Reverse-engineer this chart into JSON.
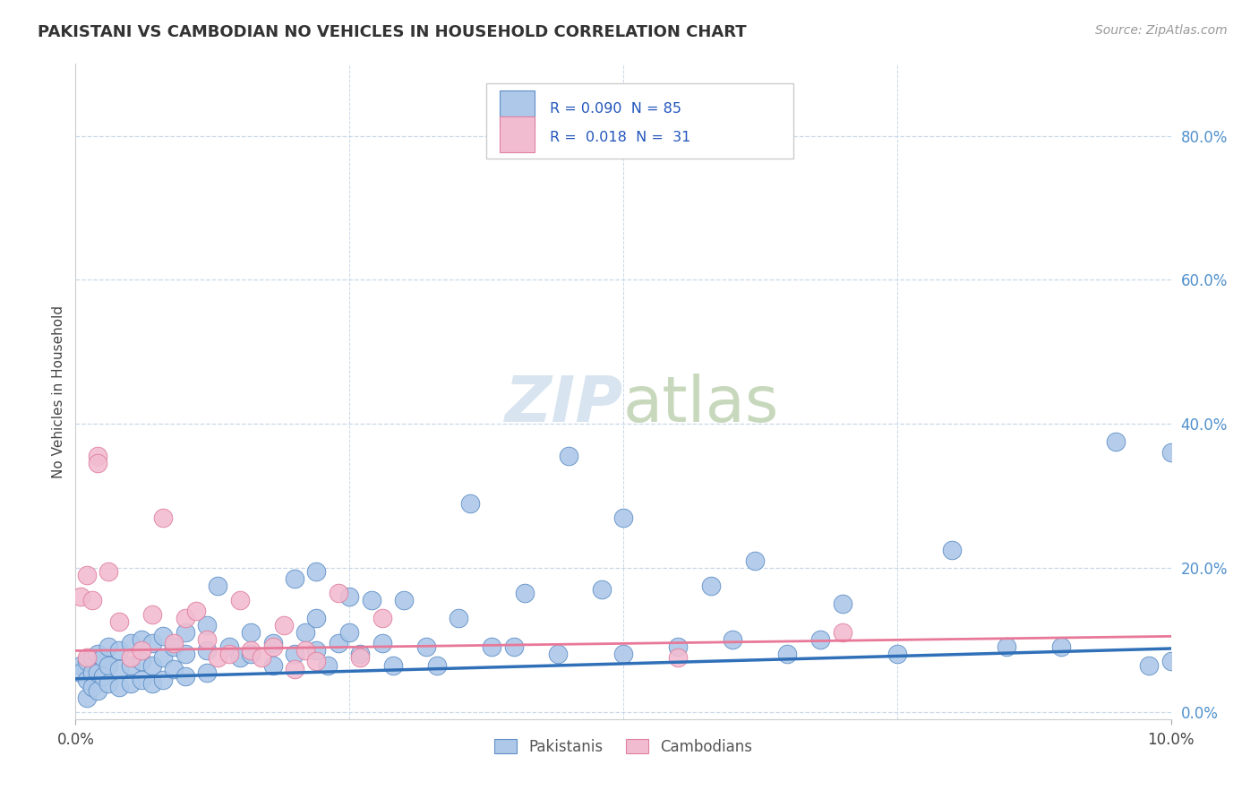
{
  "title": "PAKISTANI VS CAMBODIAN NO VEHICLES IN HOUSEHOLD CORRELATION CHART",
  "source": "Source: ZipAtlas.com",
  "ylabel": "No Vehicles in Household",
  "pakistani_color": "#adc8e8",
  "cambodian_color": "#f2bcd0",
  "pakistani_edge_color": "#6090c8",
  "cambodian_edge_color": "#e080a0",
  "pakistani_line_color": "#3070b8",
  "cambodian_line_color": "#e87898",
  "watermark_color": "#d8e4f0",
  "background_color": "#ffffff",
  "grid_color": "#c8d8e8",
  "right_tick_color": "#5090cc",
  "ytick_positions": [
    0.0,
    0.2,
    0.4,
    0.6,
    0.8
  ],
  "yticklabels": [
    "0.0%",
    "20.0%",
    "40.0%",
    "60.0%",
    "80.0%"
  ],
  "xlim": [
    0.0,
    0.1
  ],
  "ylim": [
    -0.01,
    0.9
  ],
  "pakistani_data": [
    [
      0.0005,
      0.065
    ],
    [
      0.0005,
      0.055
    ],
    [
      0.001,
      0.07
    ],
    [
      0.001,
      0.045
    ],
    [
      0.001,
      0.02
    ],
    [
      0.0015,
      0.075
    ],
    [
      0.0015,
      0.055
    ],
    [
      0.0015,
      0.035
    ],
    [
      0.002,
      0.08
    ],
    [
      0.002,
      0.055
    ],
    [
      0.002,
      0.03
    ],
    [
      0.0025,
      0.075
    ],
    [
      0.0025,
      0.05
    ],
    [
      0.003,
      0.09
    ],
    [
      0.003,
      0.065
    ],
    [
      0.003,
      0.04
    ],
    [
      0.004,
      0.085
    ],
    [
      0.004,
      0.06
    ],
    [
      0.004,
      0.035
    ],
    [
      0.005,
      0.095
    ],
    [
      0.005,
      0.065
    ],
    [
      0.005,
      0.04
    ],
    [
      0.006,
      0.1
    ],
    [
      0.006,
      0.07
    ],
    [
      0.006,
      0.045
    ],
    [
      0.007,
      0.095
    ],
    [
      0.007,
      0.065
    ],
    [
      0.007,
      0.04
    ],
    [
      0.008,
      0.105
    ],
    [
      0.008,
      0.075
    ],
    [
      0.008,
      0.045
    ],
    [
      0.009,
      0.09
    ],
    [
      0.009,
      0.06
    ],
    [
      0.01,
      0.11
    ],
    [
      0.01,
      0.08
    ],
    [
      0.01,
      0.05
    ],
    [
      0.012,
      0.12
    ],
    [
      0.012,
      0.085
    ],
    [
      0.012,
      0.055
    ],
    [
      0.013,
      0.175
    ],
    [
      0.014,
      0.09
    ],
    [
      0.015,
      0.075
    ],
    [
      0.016,
      0.11
    ],
    [
      0.016,
      0.08
    ],
    [
      0.018,
      0.095
    ],
    [
      0.018,
      0.065
    ],
    [
      0.02,
      0.185
    ],
    [
      0.02,
      0.08
    ],
    [
      0.021,
      0.11
    ],
    [
      0.022,
      0.195
    ],
    [
      0.022,
      0.13
    ],
    [
      0.022,
      0.085
    ],
    [
      0.023,
      0.065
    ],
    [
      0.024,
      0.095
    ],
    [
      0.025,
      0.16
    ],
    [
      0.025,
      0.11
    ],
    [
      0.026,
      0.08
    ],
    [
      0.027,
      0.155
    ],
    [
      0.028,
      0.095
    ],
    [
      0.029,
      0.065
    ],
    [
      0.03,
      0.155
    ],
    [
      0.032,
      0.09
    ],
    [
      0.033,
      0.065
    ],
    [
      0.035,
      0.13
    ],
    [
      0.036,
      0.29
    ],
    [
      0.038,
      0.09
    ],
    [
      0.04,
      0.09
    ],
    [
      0.041,
      0.165
    ],
    [
      0.044,
      0.08
    ],
    [
      0.045,
      0.355
    ],
    [
      0.048,
      0.17
    ],
    [
      0.05,
      0.08
    ],
    [
      0.05,
      0.27
    ],
    [
      0.055,
      0.09
    ],
    [
      0.058,
      0.175
    ],
    [
      0.06,
      0.1
    ],
    [
      0.062,
      0.21
    ],
    [
      0.065,
      0.08
    ],
    [
      0.068,
      0.1
    ],
    [
      0.07,
      0.15
    ],
    [
      0.075,
      0.08
    ],
    [
      0.08,
      0.225
    ],
    [
      0.085,
      0.09
    ],
    [
      0.09,
      0.09
    ],
    [
      0.095,
      0.375
    ],
    [
      0.098,
      0.065
    ],
    [
      0.1,
      0.36
    ],
    [
      0.1,
      0.07
    ]
  ],
  "cambodian_data": [
    [
      0.0005,
      0.16
    ],
    [
      0.001,
      0.19
    ],
    [
      0.001,
      0.075
    ],
    [
      0.0015,
      0.155
    ],
    [
      0.002,
      0.355
    ],
    [
      0.002,
      0.345
    ],
    [
      0.003,
      0.195
    ],
    [
      0.004,
      0.125
    ],
    [
      0.005,
      0.075
    ],
    [
      0.006,
      0.085
    ],
    [
      0.007,
      0.135
    ],
    [
      0.008,
      0.27
    ],
    [
      0.009,
      0.095
    ],
    [
      0.01,
      0.13
    ],
    [
      0.011,
      0.14
    ],
    [
      0.012,
      0.1
    ],
    [
      0.013,
      0.075
    ],
    [
      0.014,
      0.08
    ],
    [
      0.015,
      0.155
    ],
    [
      0.016,
      0.085
    ],
    [
      0.017,
      0.075
    ],
    [
      0.018,
      0.09
    ],
    [
      0.019,
      0.12
    ],
    [
      0.02,
      0.06
    ],
    [
      0.021,
      0.085
    ],
    [
      0.022,
      0.07
    ],
    [
      0.024,
      0.165
    ],
    [
      0.026,
      0.075
    ],
    [
      0.028,
      0.13
    ],
    [
      0.055,
      0.075
    ],
    [
      0.07,
      0.11
    ]
  ]
}
